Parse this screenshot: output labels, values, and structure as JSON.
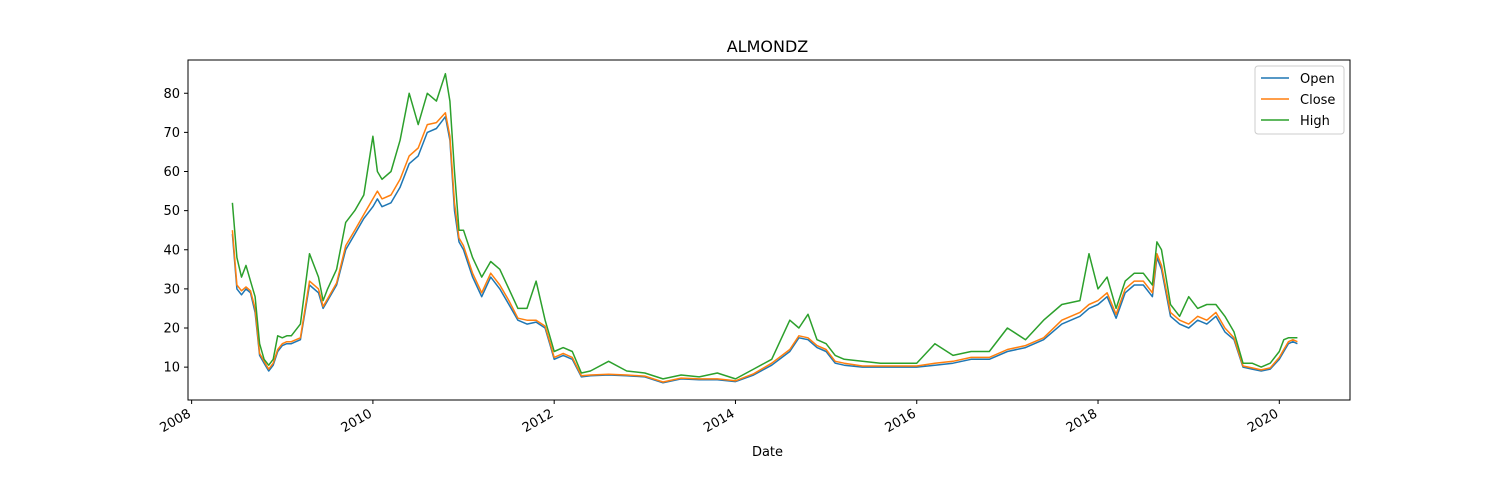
{
  "chart_data": {
    "type": "line",
    "title": "ALMONDZ",
    "xlabel": "Date",
    "ylabel": "",
    "xlim": [
      2007.96,
      2020.78
    ],
    "ylim": [
      1.6,
      88.5
    ],
    "x_ticks": [
      2008,
      2010,
      2012,
      2014,
      2016,
      2018,
      2020
    ],
    "x_tick_labels": [
      "2008",
      "2010",
      "2012",
      "2014",
      "2016",
      "2018",
      "2020"
    ],
    "y_ticks": [
      10,
      20,
      30,
      40,
      50,
      60,
      70,
      80
    ],
    "y_tick_labels": [
      "10",
      "20",
      "30",
      "40",
      "50",
      "60",
      "70",
      "80"
    ],
    "grid": false,
    "legend_position": "top-right",
    "x": [
      2008.45,
      2008.5,
      2008.55,
      2008.6,
      2008.65,
      2008.7,
      2008.75,
      2008.8,
      2008.85,
      2008.9,
      2008.95,
      2009.0,
      2009.05,
      2009.1,
      2009.2,
      2009.3,
      2009.4,
      2009.45,
      2009.5,
      2009.6,
      2009.7,
      2009.8,
      2009.9,
      2010.0,
      2010.05,
      2010.1,
      2010.2,
      2010.3,
      2010.4,
      2010.5,
      2010.6,
      2010.7,
      2010.8,
      2010.85,
      2010.9,
      2010.95,
      2011.0,
      2011.1,
      2011.2,
      2011.3,
      2011.4,
      2011.5,
      2011.6,
      2011.7,
      2011.8,
      2011.9,
      2011.95,
      2012.0,
      2012.1,
      2012.2,
      2012.3,
      2012.4,
      2012.6,
      2012.8,
      2013.0,
      2013.2,
      2013.4,
      2013.6,
      2013.8,
      2014.0,
      2014.2,
      2014.4,
      2014.6,
      2014.7,
      2014.8,
      2014.9,
      2015.0,
      2015.1,
      2015.2,
      2015.4,
      2015.6,
      2015.8,
      2016.0,
      2016.2,
      2016.4,
      2016.6,
      2016.8,
      2017.0,
      2017.2,
      2017.4,
      2017.6,
      2017.8,
      2017.9,
      2018.0,
      2018.1,
      2018.2,
      2018.3,
      2018.4,
      2018.5,
      2018.6,
      2018.65,
      2018.7,
      2018.8,
      2018.9,
      2019.0,
      2019.1,
      2019.2,
      2019.3,
      2019.4,
      2019.5,
      2019.6,
      2019.7,
      2019.8,
      2019.9,
      2020.0,
      2020.05,
      2020.1,
      2020.15,
      2020.2
    ],
    "series": [
      {
        "name": "Open",
        "color": "#1f77b4",
        "values": [
          44.0,
          30.0,
          28.5,
          30.0,
          29.0,
          24.0,
          13.0,
          11.0,
          9.0,
          10.5,
          14.0,
          15.5,
          16.0,
          16.0,
          17.0,
          31.0,
          29.0,
          25.0,
          27.0,
          31.0,
          40.0,
          44.0,
          48.0,
          51.0,
          53.0,
          51.0,
          52.0,
          56.0,
          62.0,
          64.0,
          70.0,
          71.0,
          74.0,
          68.0,
          50.0,
          42.0,
          40.0,
          33.0,
          28.0,
          33.0,
          30.0,
          26.0,
          22.0,
          21.0,
          21.5,
          20.0,
          16.0,
          12.0,
          13.0,
          12.0,
          7.5,
          7.8,
          8.0,
          7.8,
          7.5,
          6.0,
          7.0,
          6.8,
          6.8,
          6.3,
          8.0,
          10.5,
          14.0,
          17.5,
          17.0,
          15.0,
          14.0,
          11.0,
          10.5,
          10.0,
          10.0,
          10.0,
          10.0,
          10.5,
          11.0,
          12.0,
          12.0,
          14.0,
          15.0,
          17.0,
          21.0,
          23.0,
          25.0,
          26.0,
          28.0,
          22.5,
          29.0,
          31.0,
          31.0,
          28.0,
          38.0,
          35.0,
          23.0,
          21.0,
          20.0,
          22.0,
          21.0,
          23.0,
          19.0,
          17.0,
          10.0,
          9.5,
          9.0,
          9.5,
          12.0,
          14.0,
          16.0,
          16.5,
          16.0
        ]
      },
      {
        "name": "Close",
        "color": "#ff7f0e",
        "values": [
          45.0,
          31.0,
          29.5,
          30.5,
          29.5,
          25.0,
          13.5,
          11.5,
          9.5,
          11.0,
          14.5,
          16.0,
          16.5,
          16.5,
          17.5,
          32.0,
          30.0,
          25.5,
          27.5,
          31.5,
          41.0,
          45.0,
          49.0,
          53.0,
          55.0,
          53.0,
          54.0,
          58.0,
          64.0,
          66.0,
          72.0,
          72.5,
          75.0,
          69.0,
          52.0,
          43.0,
          41.0,
          34.0,
          29.0,
          34.0,
          31.0,
          27.0,
          22.5,
          22.0,
          22.0,
          20.5,
          16.5,
          12.5,
          13.5,
          12.5,
          7.8,
          8.0,
          8.2,
          8.0,
          7.7,
          6.2,
          7.2,
          7.0,
          7.0,
          6.5,
          8.3,
          11.0,
          14.5,
          18.0,
          17.5,
          15.5,
          14.5,
          11.5,
          11.0,
          10.3,
          10.3,
          10.3,
          10.3,
          11.0,
          11.5,
          12.5,
          12.5,
          14.5,
          15.5,
          17.5,
          22.0,
          24.0,
          26.0,
          27.0,
          29.0,
          23.5,
          30.0,
          32.0,
          32.0,
          29.0,
          39.0,
          36.0,
          24.0,
          22.0,
          21.0,
          23.0,
          22.0,
          24.0,
          20.0,
          17.5,
          10.3,
          9.8,
          9.3,
          9.8,
          12.5,
          14.5,
          16.5,
          17.0,
          16.5
        ]
      },
      {
        "name": "High",
        "color": "#2ca02c",
        "values": [
          52.0,
          38.0,
          33.0,
          36.0,
          32.0,
          28.0,
          16.0,
          12.0,
          10.5,
          12.0,
          18.0,
          17.5,
          18.0,
          18.0,
          21.0,
          39.0,
          33.0,
          27.0,
          30.0,
          35.0,
          47.0,
          50.0,
          54.0,
          69.0,
          60.0,
          58.0,
          60.0,
          68.0,
          80.0,
          72.0,
          80.0,
          78.0,
          85.0,
          78.0,
          60.0,
          45.0,
          45.0,
          38.0,
          33.0,
          37.0,
          35.0,
          30.0,
          25.0,
          25.0,
          32.0,
          22.0,
          18.0,
          14.0,
          15.0,
          14.0,
          8.5,
          9.0,
          11.5,
          9.0,
          8.5,
          7.0,
          8.0,
          7.5,
          8.5,
          7.0,
          9.5,
          12.0,
          22.0,
          20.0,
          23.5,
          17.0,
          16.0,
          13.0,
          12.0,
          11.5,
          11.0,
          11.0,
          11.0,
          16.0,
          13.0,
          14.0,
          14.0,
          20.0,
          17.0,
          22.0,
          26.0,
          27.0,
          39.0,
          30.0,
          33.0,
          25.0,
          32.0,
          34.0,
          34.0,
          31.0,
          42.0,
          40.0,
          26.0,
          23.0,
          28.0,
          25.0,
          26.0,
          26.0,
          23.0,
          19.0,
          11.0,
          11.0,
          10.0,
          11.0,
          14.0,
          17.0,
          17.5,
          17.5,
          17.5
        ]
      }
    ]
  }
}
